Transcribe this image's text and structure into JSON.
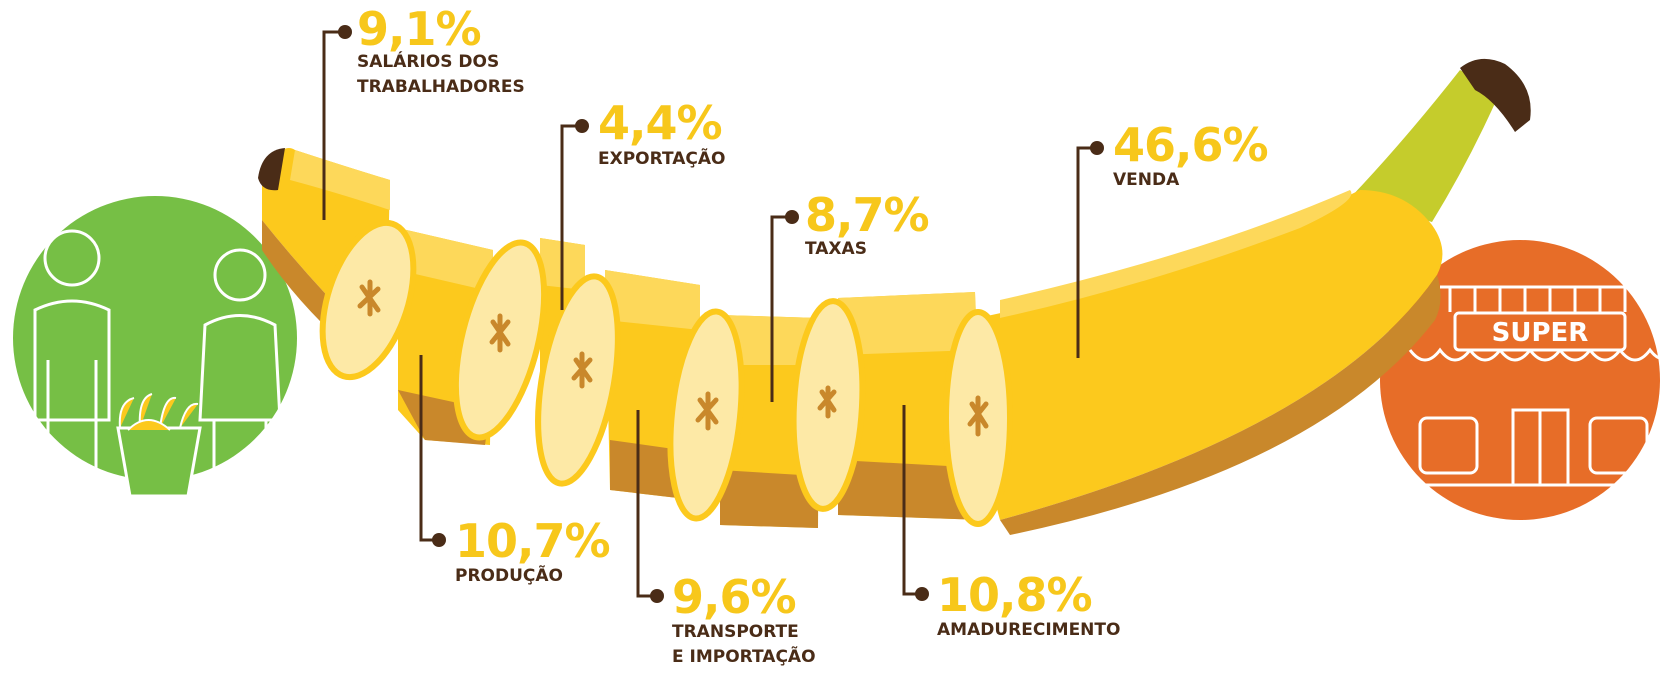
{
  "colors": {
    "accent_yellow": "#f7c71b",
    "label_brown": "#4a2c17",
    "banana_yellow": "#fcc91d",
    "banana_dark": "#c9882b",
    "slice_cream": "#fde9a6",
    "stem_green": "#c5cc2c",
    "left_circle_green": "#76bf45",
    "right_circle_orange": "#e76d28"
  },
  "icons": {
    "left": "workers-icon",
    "right": "supermarket-icon",
    "store_sign": "SUPER"
  },
  "segments": [
    {
      "id": "salarios",
      "percent": "9,1%",
      "value": 9.1,
      "label_lines": [
        "SALÁRIOS DOS",
        "TRABALHADORES"
      ]
    },
    {
      "id": "producao",
      "percent": "10,7%",
      "value": 10.7,
      "label_lines": [
        "PRODUÇÃO"
      ]
    },
    {
      "id": "exportacao",
      "percent": "4,4%",
      "value": 4.4,
      "label_lines": [
        "EXPORTAÇÃO"
      ]
    },
    {
      "id": "transporte",
      "percent": "9,6%",
      "value": 9.6,
      "label_lines": [
        "TRANSPORTE",
        "E IMPORTAÇÃO"
      ]
    },
    {
      "id": "taxas",
      "percent": "8,7%",
      "value": 8.7,
      "label_lines": [
        "TAXAS"
      ]
    },
    {
      "id": "amadurecimento",
      "percent": "10,8%",
      "value": 10.8,
      "label_lines": [
        "AMADURECIMENTO"
      ]
    },
    {
      "id": "venda",
      "percent": "46,6%",
      "value": 46.6,
      "label_lines": [
        "VENDA"
      ]
    }
  ]
}
